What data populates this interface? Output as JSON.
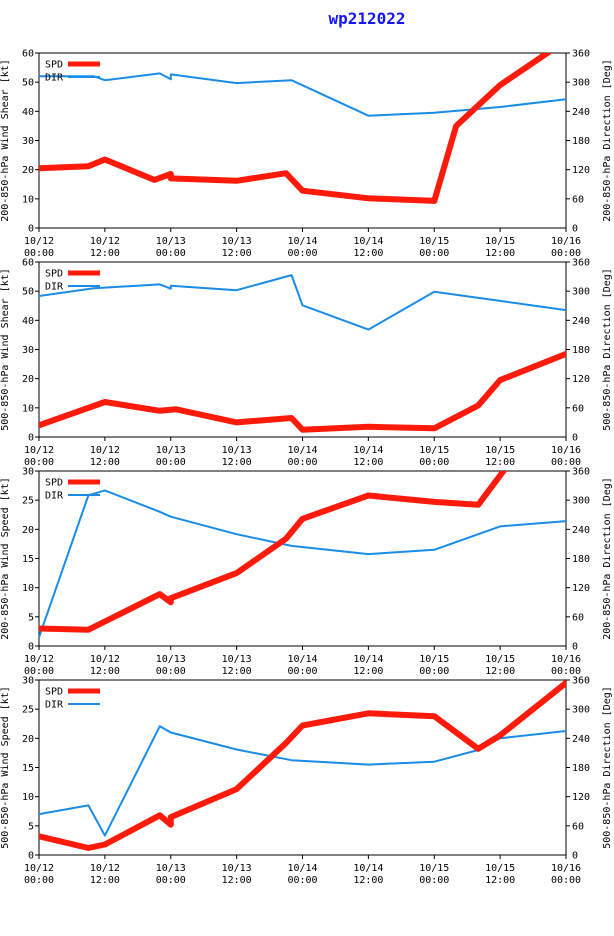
{
  "title": "wp212022",
  "colors": {
    "spd": "#ff1a0a",
    "dir": "#1a8ce6",
    "axis": "#000000"
  },
  "x_ticks": [
    {
      "d": "10/12",
      "t": "00:00"
    },
    {
      "d": "10/12",
      "t": "12:00"
    },
    {
      "d": "10/13",
      "t": "00:00"
    },
    {
      "d": "10/13",
      "t": "12:00"
    },
    {
      "d": "10/14",
      "t": "00:00"
    },
    {
      "d": "10/14",
      "t": "12:00"
    },
    {
      "d": "10/15",
      "t": "00:00"
    },
    {
      "d": "10/15",
      "t": "12:00"
    },
    {
      "d": "10/16",
      "t": "00:00"
    }
  ],
  "chart_data": [
    {
      "type": "line",
      "ylabel": "200-850-hPa Wind Shear [kt]",
      "y2label": "200-850-hPa Direction [Deg]",
      "ylim": [
        0,
        60
      ],
      "yticks": [
        0,
        10,
        20,
        30,
        40,
        50,
        60
      ],
      "y2lim": [
        0,
        360
      ],
      "y2ticks": [
        60,
        120,
        180,
        240,
        300,
        360
      ],
      "xlim": [
        0,
        96
      ],
      "legend": [
        "SPD",
        "DIR"
      ],
      "series": [
        {
          "name": "SPD",
          "axis": "left",
          "x": [
            0,
            9,
            12,
            21,
            24,
            24,
            36,
            45,
            48,
            60,
            72,
            76,
            84,
            93
          ],
          "y": [
            20.5,
            21.2,
            23.5,
            16.5,
            18.5,
            17,
            16.2,
            18.8,
            12.8,
            10.2,
            9.3,
            35,
            49,
            60.5
          ]
        },
        {
          "name": "DIR",
          "axis": "right",
          "x": [
            0,
            10,
            12,
            22,
            24,
            24,
            36,
            46,
            60,
            72,
            84,
            96
          ],
          "y": [
            312,
            312,
            304,
            318,
            306,
            316,
            298,
            304,
            231,
            237,
            249,
            265
          ]
        }
      ]
    },
    {
      "type": "line",
      "ylabel": "500-850-hPa Wind Shear [kt]",
      "y2label": "500-850-hPa Direction [Deg]",
      "ylim": [
        0,
        60
      ],
      "yticks": [
        0,
        10,
        20,
        30,
        40,
        50,
        60
      ],
      "y2lim": [
        0,
        360
      ],
      "y2ticks": [
        60,
        120,
        180,
        240,
        300,
        360
      ],
      "xlim": [
        0,
        96
      ],
      "legend": [
        "SPD",
        "DIR"
      ],
      "series": [
        {
          "name": "SPD",
          "axis": "left",
          "x": [
            0,
            12,
            22,
            25,
            36,
            46,
            48,
            60,
            72,
            80,
            84,
            96
          ],
          "y": [
            4,
            12,
            9,
            9.5,
            5,
            6.5,
            2.5,
            3.5,
            3,
            10.8,
            19.5,
            28.5
          ]
        },
        {
          "name": "DIR",
          "axis": "right",
          "x": [
            0,
            10,
            22,
            24,
            24,
            36,
            46,
            48,
            60,
            72,
            84,
            96
          ],
          "y": [
            290,
            306,
            314,
            305,
            311,
            302,
            333,
            271,
            221,
            299,
            280,
            261
          ]
        }
      ]
    },
    {
      "type": "line",
      "ylabel": "200-850-hPa Wind Speed [kt]",
      "y2label": "200-850-hPa Direction [Deg]",
      "ylim": [
        0,
        30
      ],
      "yticks": [
        0,
        5,
        10,
        15,
        20,
        25,
        30
      ],
      "y2lim": [
        0,
        360
      ],
      "y2ticks": [
        60,
        120,
        180,
        240,
        300,
        360
      ],
      "xlim": [
        0,
        96
      ],
      "legend": [
        "SPD",
        "DIR"
      ],
      "series": [
        {
          "name": "SPD",
          "axis": "left",
          "x": [
            0,
            9,
            12,
            22,
            24,
            24,
            36,
            45,
            48,
            60,
            72,
            80,
            85
          ],
          "y": [
            3,
            2.8,
            4.2,
            8.9,
            7.5,
            8.2,
            12.5,
            18.4,
            21.8,
            25.8,
            24.7,
            24.2,
            30.5
          ]
        },
        {
          "name": "DIR",
          "axis": "right",
          "x": [
            0,
            9,
            12,
            22,
            24,
            36,
            46,
            60,
            72,
            80,
            84,
            96
          ],
          "y": [
            18,
            310,
            320,
            276,
            266,
            230,
            206,
            189,
            198,
            230,
            246,
            257
          ]
        }
      ]
    },
    {
      "type": "line",
      "ylabel": "500-850-hPa Wind Speed [kt]",
      "y2label": "500-850-hPa Direction [Deg]",
      "ylim": [
        0,
        30
      ],
      "yticks": [
        0,
        5,
        10,
        15,
        20,
        25,
        30
      ],
      "y2lim": [
        0,
        360
      ],
      "y2ticks": [
        60,
        120,
        180,
        240,
        300,
        360
      ],
      "xlim": [
        0,
        96
      ],
      "legend": [
        "SPD",
        "DIR"
      ],
      "series": [
        {
          "name": "SPD",
          "axis": "left",
          "x": [
            0,
            9,
            12,
            22,
            24,
            24,
            36,
            45,
            48,
            60,
            72,
            80,
            84,
            96
          ],
          "y": [
            3.2,
            1.2,
            1.8,
            6.8,
            5.2,
            6.5,
            11.3,
            19.2,
            22.2,
            24.3,
            23.8,
            18.2,
            20.5,
            29.5
          ]
        },
        {
          "name": "DIR",
          "axis": "right",
          "x": [
            0,
            9,
            12,
            22,
            24,
            36,
            46,
            60,
            72,
            80,
            84,
            96
          ],
          "y": [
            84,
            102,
            40,
            265,
            252,
            217,
            195,
            186,
            192,
            216,
            240,
            255
          ]
        }
      ]
    }
  ]
}
